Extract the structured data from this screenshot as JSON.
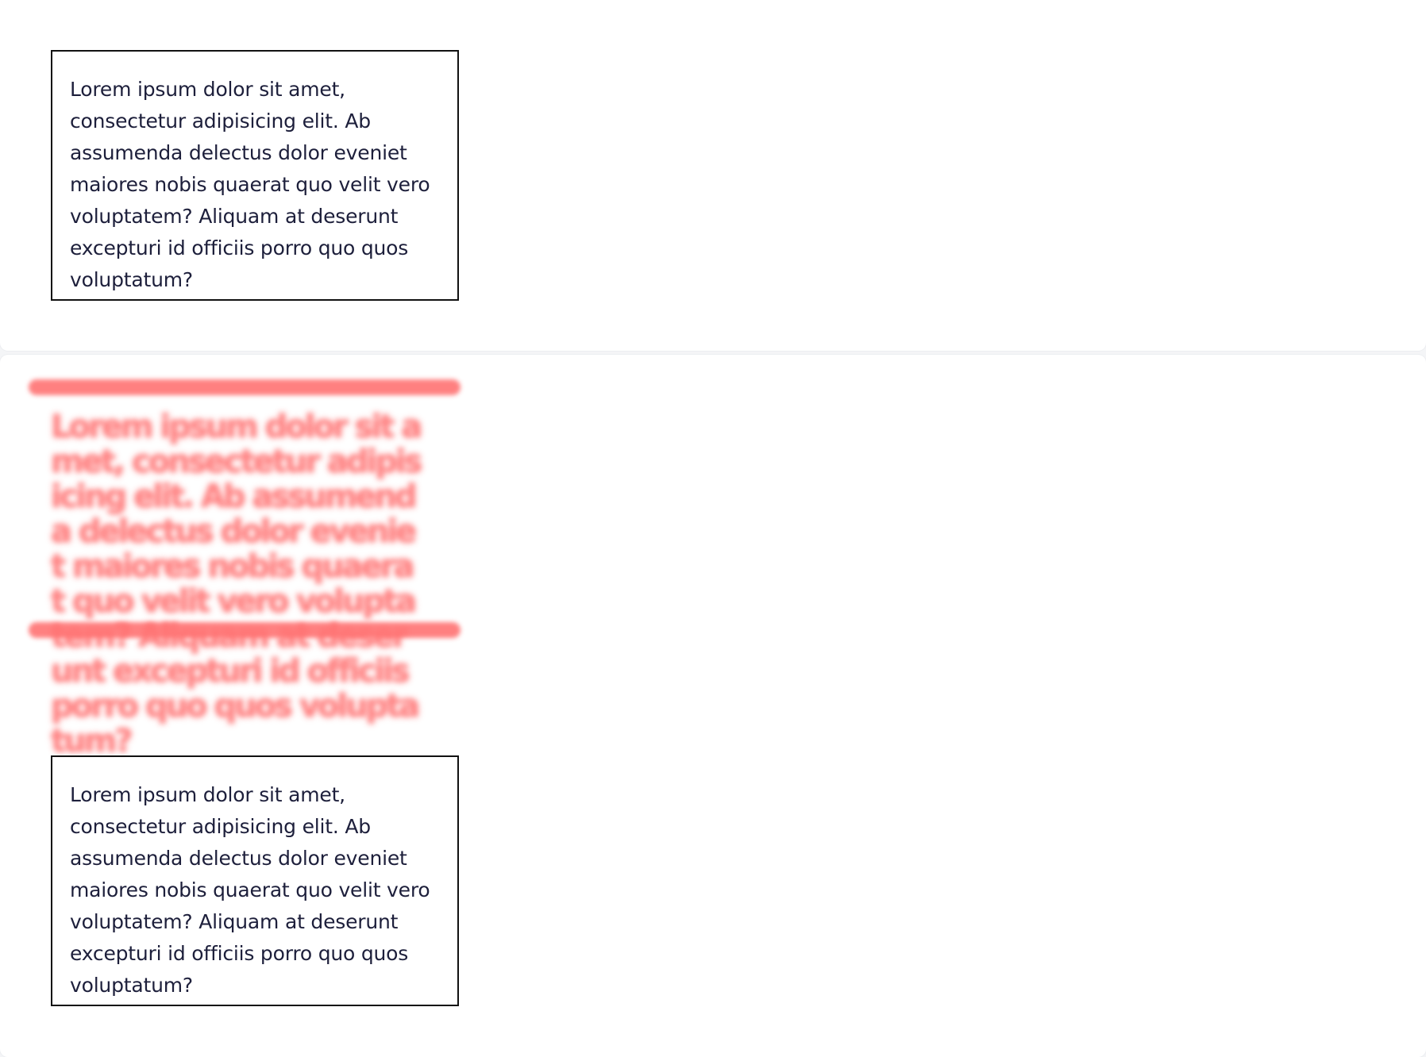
{
  "panels": [
    {
      "text": "Lorem ipsum dolor sit amet, consectetur adipisicing elit. Ab assumenda delectus dolor eveniet maiores nobis quaerat quo velit vero voluptatem? Aliquam at deserunt excepturi id officiis porro quo quos voluptatum?"
    },
    {
      "text": "Lorem ipsum dolor sit amet, consectetur adipisicing elit. Ab assumenda delectus dolor eveniet maiores nobis quaerat quo velit vero voluptatem? Aliquam at deserunt excepturi id officiis porro quo quos voluptatum?"
    },
    {
      "text": "Lorem ipsum dolor sit amet, consectetur adipisicing elit. Ab assumenda delectus dolor eveniet maiores nobis quaerat quo velit vero voluptatem? Aliquam at deserunt excepturi id officiis porro quo quos voluptatum?"
    }
  ],
  "colors": {
    "text": "#1d1f3b",
    "border": "#111111",
    "blur_accent": "#ff7373",
    "background": "#f4f5f7",
    "card": "#ffffff"
  }
}
